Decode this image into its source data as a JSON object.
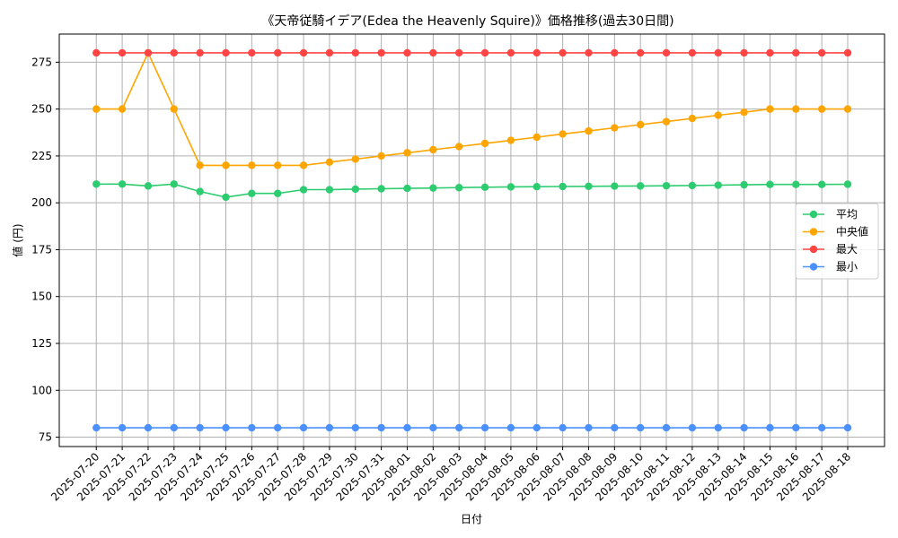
{
  "chart_data": {
    "type": "line",
    "title": "《天帝従騎イデア(Edea the Heavenly Squire)》価格推移(過去30日間)",
    "xlabel": "日付",
    "ylabel": "値 (円)",
    "ylim": [
      70,
      290
    ],
    "yticks": [
      75,
      100,
      125,
      150,
      175,
      200,
      225,
      250,
      275
    ],
    "grid": true,
    "legend_position": "center-right",
    "categories": [
      "2025-07-20",
      "2025-07-21",
      "2025-07-22",
      "2025-07-23",
      "2025-07-24",
      "2025-07-25",
      "2025-07-26",
      "2025-07-27",
      "2025-07-28",
      "2025-07-29",
      "2025-07-30",
      "2025-07-31",
      "2025-08-01",
      "2025-08-02",
      "2025-08-03",
      "2025-08-04",
      "2025-08-05",
      "2025-08-06",
      "2025-08-07",
      "2025-08-08",
      "2025-08-09",
      "2025-08-10",
      "2025-08-11",
      "2025-08-12",
      "2025-08-13",
      "2025-08-14",
      "2025-08-15",
      "2025-08-16",
      "2025-08-17",
      "2025-08-18"
    ],
    "series": [
      {
        "name": "平均",
        "color": "#2ecc71",
        "values": [
          210,
          210,
          209,
          210,
          206,
          203,
          205,
          205,
          207,
          207,
          207.3,
          207.5,
          207.7,
          207.9,
          208.1,
          208.3,
          208.5,
          208.6,
          208.7,
          208.8,
          208.9,
          209,
          209.1,
          209.2,
          209.4,
          209.6,
          209.8,
          209.8,
          209.8,
          209.9
        ]
      },
      {
        "name": "中央値",
        "color": "#ffa500",
        "values": [
          250,
          250,
          280,
          250,
          220,
          220,
          220,
          220,
          220,
          221.7,
          223.3,
          225,
          226.7,
          228.3,
          230,
          231.7,
          233.3,
          235,
          236.7,
          238.3,
          240,
          241.7,
          243.3,
          245,
          246.7,
          248.3,
          250,
          250,
          250,
          250
        ]
      },
      {
        "name": "最大",
        "color": "#ff4444",
        "values": [
          280,
          280,
          280,
          280,
          280,
          280,
          280,
          280,
          280,
          280,
          280,
          280,
          280,
          280,
          280,
          280,
          280,
          280,
          280,
          280,
          280,
          280,
          280,
          280,
          280,
          280,
          280,
          280,
          280,
          280
        ]
      },
      {
        "name": "最小",
        "color": "#4a90ff",
        "values": [
          80,
          80,
          80,
          80,
          80,
          80,
          80,
          80,
          80,
          80,
          80,
          80,
          80,
          80,
          80,
          80,
          80,
          80,
          80,
          80,
          80,
          80,
          80,
          80,
          80,
          80,
          80,
          80,
          80,
          80
        ]
      }
    ]
  }
}
